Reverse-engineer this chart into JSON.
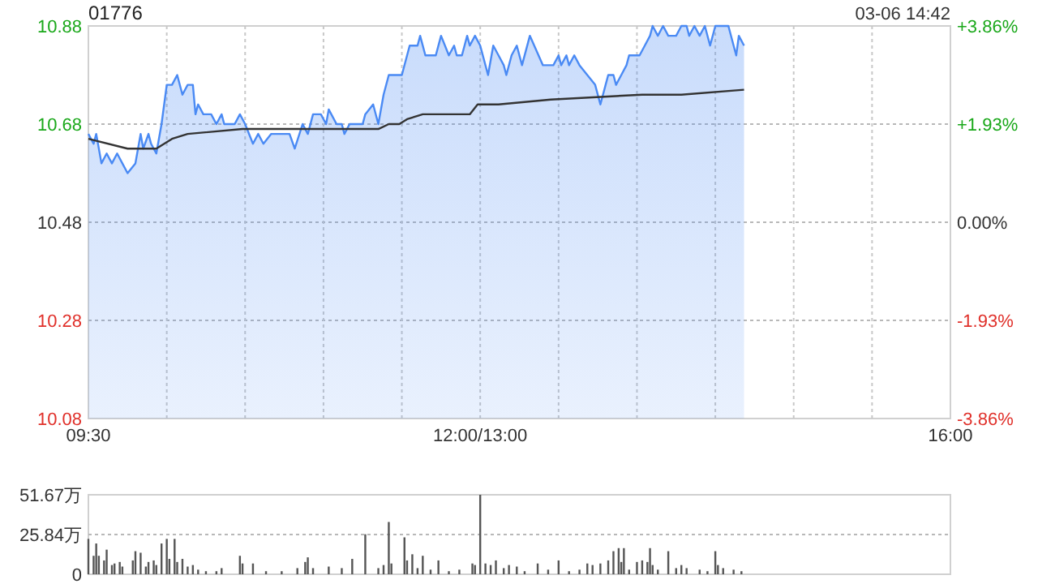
{
  "chart_data": [
    {
      "type": "line",
      "title": "01776",
      "annotations": [
        "03-06 14:42"
      ],
      "categories": [
        "09:30",
        null,
        null,
        null,
        null,
        null,
        null,
        null,
        null,
        null,
        null,
        null,
        null,
        null,
        null,
        null,
        null,
        null,
        null,
        null,
        null,
        null,
        null,
        null,
        null,
        null,
        null,
        null,
        null,
        null,
        null,
        null,
        null,
        null,
        null,
        null,
        null,
        null,
        null,
        null,
        null,
        null,
        null,
        null,
        null,
        null,
        null,
        null,
        null,
        null,
        null,
        null,
        null,
        null,
        null,
        null,
        null,
        null,
        null,
        null,
        null,
        null,
        null,
        null,
        null,
        null,
        null,
        null,
        null,
        null,
        null,
        null,
        null,
        null,
        null,
        null,
        null,
        null,
        null,
        null,
        null,
        null,
        null,
        null,
        null,
        null,
        null,
        null,
        null,
        null,
        null,
        null,
        null,
        null,
        null,
        null,
        null,
        null,
        null,
        null,
        null,
        null,
        null,
        null,
        null,
        null,
        null,
        null,
        null,
        null,
        null,
        null,
        null,
        null,
        null,
        null,
        null,
        null,
        null,
        null,
        null,
        null,
        null,
        null,
        null,
        null,
        null,
        null,
        null,
        null,
        null,
        null,
        null,
        null,
        null,
        null,
        null,
        null,
        null,
        null,
        null,
        null,
        null,
        null,
        null,
        null,
        null,
        null,
        null,
        null,
        "12:00/13:00",
        null,
        null,
        null,
        null,
        null,
        null,
        null,
        null,
        null,
        null,
        null,
        null,
        null,
        null,
        null,
        null,
        null,
        null,
        null,
        null,
        null,
        null,
        null,
        null,
        null,
        null,
        null,
        null,
        null,
        null,
        null,
        null,
        null,
        null,
        null,
        null,
        null,
        null,
        null,
        null,
        null,
        null,
        null,
        null,
        null,
        null,
        null,
        null,
        null,
        null,
        null,
        null,
        null,
        null,
        null,
        null,
        null,
        null,
        null,
        null,
        null,
        null,
        null,
        null,
        null,
        null,
        null,
        null,
        null,
        null,
        null,
        null,
        null,
        null,
        null,
        null,
        null,
        null,
        null,
        null,
        null,
        null,
        null,
        null,
        null,
        null,
        null,
        null,
        null,
        null,
        null,
        null,
        null,
        null,
        null,
        null,
        null,
        null,
        null,
        null,
        null,
        null,
        null,
        null,
        null,
        null,
        null,
        null,
        null,
        null,
        null,
        null,
        null,
        null,
        null,
        null,
        null,
        null,
        null,
        null,
        null,
        null,
        null,
        null,
        null,
        null,
        null,
        null,
        null,
        null,
        null,
        null,
        null,
        null,
        null,
        null,
        null,
        null,
        null,
        null,
        null,
        null,
        null,
        null,
        null,
        null,
        null,
        null,
        null,
        null,
        null,
        null,
        null,
        null,
        null,
        null,
        null,
        null,
        null,
        null,
        null,
        null,
        null,
        null,
        null,
        null,
        null,
        null,
        null,
        null,
        null,
        null,
        null,
        null,
        null,
        null,
        null,
        null,
        null,
        "16:00"
      ],
      "ylim": [
        10.08,
        10.88
      ],
      "yticks": [
        10.08,
        10.28,
        10.48,
        10.68,
        10.88
      ],
      "y2lim": [
        -3.86,
        3.86
      ],
      "y2ticks": [
        {
          "value": -3.86,
          "label": "-3.86%"
        },
        {
          "value": -1.93,
          "label": "-1.93%"
        },
        {
          "value": 0,
          "label": "0.00%"
        },
        {
          "value": 1.93,
          "label": "+1.93%"
        },
        {
          "value": 3.86,
          "label": "+3.86%"
        }
      ],
      "grid": true,
      "series": [
        {
          "type": "area",
          "color": "#4a8af4",
          "values": [
            10.66,
            null,
            10.64,
            10.66,
            null,
            10.6,
            null,
            10.62,
            null,
            10.6,
            null,
            10.62,
            null,
            10.6,
            null,
            10.58,
            null,
            null,
            10.6,
            null,
            10.66,
            10.63,
            null,
            10.66,
            10.64,
            null,
            10.62,
            null,
            10.68,
            null,
            10.76,
            null,
            10.76,
            null,
            10.78,
            null,
            10.74,
            null,
            10.76,
            null,
            10.76,
            10.7,
            10.72,
            null,
            10.7,
            null,
            null,
            10.7,
            null,
            10.68,
            null,
            10.7,
            10.68,
            null,
            null,
            null,
            10.68,
            null,
            10.7,
            null,
            10.68,
            null,
            null,
            10.64,
            null,
            10.66,
            null,
            10.64,
            null,
            null,
            10.66,
            null,
            null,
            null,
            null,
            null,
            null,
            10.66,
            null,
            10.63,
            null,
            null,
            10.68,
            null,
            10.66,
            null,
            10.7,
            null,
            null,
            10.7,
            null,
            10.68,
            10.71,
            null,
            null,
            10.68,
            null,
            10.68,
            10.66,
            null,
            10.68,
            null,
            null,
            null,
            null,
            10.68,
            10.7,
            null,
            null,
            10.72,
            null,
            10.68,
            null,
            10.74,
            null,
            10.78,
            null,
            null,
            null,
            null,
            10.78,
            null,
            null,
            10.84,
            null,
            null,
            10.84,
            10.86,
            null,
            10.82,
            null,
            null,
            null,
            10.82,
            null,
            10.86,
            null,
            null,
            10.82,
            null,
            10.84,
            10.82,
            null,
            10.82,
            null,
            10.86,
            10.84,
            null,
            10.86,
            null,
            10.84,
            null,
            null,
            10.78,
            null,
            10.84,
            null,
            10.82,
            null,
            10.8,
            10.78,
            null,
            10.82,
            null,
            10.84,
            null,
            10.8,
            null,
            null,
            10.86,
            null,
            null,
            null,
            null,
            10.8,
            null,
            null,
            null,
            10.8,
            null,
            10.82,
            10.8,
            null,
            10.82,
            10.8,
            null,
            10.82,
            null,
            10.8,
            null,
            null,
            10.78,
            null,
            null,
            10.76,
            null,
            10.72,
            null,
            10.76,
            10.78,
            null,
            10.78,
            10.76,
            null,
            10.78,
            null,
            10.8,
            10.82,
            null,
            null,
            null,
            10.82,
            null,
            10.84,
            null,
            10.86,
            10.88,
            null,
            10.86,
            null,
            10.88,
            null,
            10.86,
            null,
            null,
            10.86,
            null,
            10.88,
            null,
            10.88,
            10.86,
            null,
            10.88,
            null,
            10.86,
            null,
            10.88,
            null,
            10.84,
            null,
            10.88,
            null,
            null,
            null,
            null,
            10.88,
            null,
            10.84,
            10.82,
            10.86,
            null,
            10.84,
            null,
            null,
            null,
            null,
            null,
            null,
            null,
            null,
            null,
            null,
            null,
            null,
            null,
            null,
            null,
            null,
            null,
            null,
            null,
            null,
            null,
            null,
            null,
            null,
            null,
            null,
            null,
            null,
            null,
            null,
            null,
            null,
            null,
            null,
            null,
            null,
            null,
            null,
            null,
            null,
            null,
            null,
            null,
            null,
            null,
            null,
            null,
            null,
            null,
            null,
            null,
            null,
            null,
            null,
            null,
            null,
            null,
            null,
            null,
            null,
            null,
            null,
            null,
            null,
            null,
            null,
            null,
            null,
            null,
            null,
            null,
            null,
            null,
            null,
            null,
            null,
            null,
            null,
            null
          ]
        },
        {
          "color": "#333333",
          "values": [
            10.65,
            null,
            null,
            null,
            null,
            null,
            null,
            null,
            null,
            null,
            null,
            null,
            null,
            null,
            null,
            10.63,
            null,
            null,
            null,
            null,
            null,
            null,
            null,
            null,
            null,
            null,
            10.63,
            null,
            null,
            null,
            null,
            null,
            10.65,
            null,
            null,
            null,
            null,
            null,
            10.66,
            null,
            null,
            null,
            null,
            null,
            null,
            null,
            null,
            null,
            null,
            null,
            null,
            null,
            null,
            null,
            null,
            null,
            null,
            null,
            null,
            10.67,
            null,
            null,
            null,
            null,
            null,
            null,
            null,
            null,
            null,
            null,
            null,
            null,
            null,
            null,
            null,
            null,
            null,
            null,
            null,
            null,
            null,
            null,
            null,
            null,
            null,
            null,
            null,
            null,
            null,
            null,
            10.67,
            null,
            null,
            null,
            null,
            null,
            null,
            null,
            null,
            null,
            null,
            null,
            null,
            null,
            null,
            null,
            null,
            null,
            null,
            null,
            null,
            10.67,
            null,
            null,
            null,
            10.68,
            null,
            null,
            null,
            10.68,
            null,
            null,
            10.69,
            null,
            null,
            null,
            null,
            null,
            10.7,
            null,
            null,
            null,
            null,
            null,
            null,
            null,
            null,
            null,
            null,
            null,
            null,
            null,
            null,
            null,
            null,
            null,
            10.7,
            null,
            null,
            10.72,
            null,
            null,
            null,
            null,
            null,
            null,
            null,
            10.72,
            null,
            null,
            null,
            null,
            null,
            null,
            null,
            null,
            null,
            null,
            null,
            null,
            null,
            null,
            null,
            null,
            null,
            null,
            null,
            10.73,
            null,
            null,
            null,
            null,
            null,
            null,
            null,
            null,
            null,
            null,
            null,
            null,
            null,
            null,
            null,
            null,
            null,
            null,
            null,
            null,
            null,
            null,
            null,
            null,
            null,
            null,
            null,
            null,
            null,
            null,
            null,
            null,
            null,
            null,
            10.74,
            null,
            null,
            null,
            null,
            null,
            null,
            null,
            null,
            null,
            null,
            null,
            null,
            null,
            null,
            10.74,
            null,
            null,
            null,
            null,
            null,
            null,
            null,
            null,
            null,
            null,
            null,
            null,
            null,
            null,
            null,
            null,
            null,
            null,
            null,
            null,
            null,
            null,
            null,
            10.75,
            null,
            null,
            null,
            null,
            null,
            null,
            null,
            null,
            null,
            null,
            null,
            null,
            null,
            null,
            null,
            null,
            null,
            null,
            null,
            null,
            null,
            null,
            null,
            null,
            null,
            null,
            null,
            null,
            null,
            null,
            null,
            null,
            null,
            null,
            null,
            null,
            null,
            null,
            null,
            null,
            null,
            null,
            null,
            null,
            null,
            null,
            null,
            null,
            null,
            null,
            null,
            null,
            null,
            null,
            null,
            null,
            null,
            null,
            null,
            null,
            null,
            null,
            null,
            null,
            null,
            null,
            null,
            null,
            null,
            null,
            null,
            null,
            null,
            null,
            null,
            null,
            null,
            null,
            null
          ]
        }
      ]
    },
    {
      "type": "bar",
      "categories": [
        null,
        null,
        null,
        null,
        null,
        null,
        null,
        null,
        null,
        null,
        null,
        null,
        null,
        null,
        null,
        null,
        null,
        null,
        null,
        null,
        null,
        null,
        null,
        null,
        null,
        null,
        null,
        null,
        null,
        null,
        null,
        null,
        null,
        null,
        null,
        null,
        null,
        null,
        null,
        null,
        null,
        null,
        null,
        null,
        null,
        null,
        null,
        null,
        null,
        null,
        null,
        null,
        null,
        null,
        null,
        null,
        null,
        null,
        null,
        null,
        null,
        null,
        null,
        null,
        null,
        null,
        null,
        null,
        null,
        null,
        null,
        null,
        null,
        null,
        null,
        null,
        null,
        null,
        null,
        null,
        null,
        null,
        null,
        null,
        null,
        null,
        null,
        null,
        null,
        null,
        null,
        null,
        null,
        null,
        null,
        null,
        null,
        null,
        null,
        null,
        null,
        null,
        null,
        null,
        null,
        null,
        null,
        null,
        null,
        null,
        null,
        null,
        null,
        null,
        null,
        null,
        null,
        null,
        null,
        null,
        null,
        null,
        null,
        null,
        null,
        null,
        null,
        null,
        null,
        null,
        null,
        null,
        null,
        null,
        null,
        null,
        null,
        null,
        null,
        null,
        null,
        null,
        null,
        null,
        null,
        null,
        null,
        null,
        null,
        null,
        null,
        null,
        null,
        null,
        null,
        null,
        null,
        null,
        null,
        null,
        null,
        null,
        null,
        null,
        null,
        null,
        null,
        null,
        null,
        null,
        null,
        null,
        null,
        null,
        null,
        null,
        null,
        null,
        null,
        null,
        null,
        null,
        null,
        null,
        null,
        null,
        null,
        null,
        null,
        null,
        null,
        null,
        null,
        null,
        null,
        null,
        null,
        null,
        null,
        null,
        null,
        null,
        null,
        null,
        null,
        null,
        null,
        null,
        null,
        null,
        null,
        null,
        null,
        null,
        null,
        null,
        null,
        null,
        null,
        null,
        null,
        null,
        null,
        null,
        null,
        null,
        null,
        null,
        null,
        null,
        null,
        null,
        null,
        null,
        null,
        null,
        null,
        null,
        null,
        null,
        null,
        null,
        null,
        null,
        null,
        null,
        null,
        null,
        null,
        null,
        null,
        null,
        null,
        null,
        null,
        null,
        null,
        null,
        null,
        null,
        null,
        null,
        null,
        null,
        null,
        null,
        null,
        null,
        null,
        null,
        null,
        null,
        null,
        null,
        null,
        null,
        null,
        null,
        null,
        null,
        null,
        null,
        null,
        null,
        null,
        null,
        null,
        null,
        null,
        null,
        null,
        null,
        null,
        null,
        null,
        null,
        null,
        null,
        null,
        null,
        null,
        null,
        null,
        null,
        null,
        null,
        null,
        null,
        null,
        null,
        null,
        null,
        null,
        null,
        null,
        null,
        null,
        null,
        null,
        null,
        null,
        null,
        null,
        null,
        null,
        null,
        null,
        null,
        null,
        null,
        null
      ],
      "ylim": [
        0,
        51.67
      ],
      "yticks": [
        0,
        {
          "value": 25.84,
          "label": "25.84万"
        },
        {
          "value": 51.67,
          "label": "51.67万"
        }
      ],
      "grid": "y",
      "tick_labels": "y",
      "series": [
        {
          "color": "#555555",
          "values": [
            23,
            null,
            12,
            20,
            12,
            null,
            9,
            16,
            null,
            6,
            7,
            null,
            8,
            5,
            null,
            null,
            null,
            9,
            15,
            null,
            14,
            null,
            5,
            8,
            null,
            9,
            6,
            null,
            20,
            null,
            23,
            10,
            null,
            23,
            8,
            null,
            10,
            null,
            5,
            null,
            6,
            null,
            3,
            null,
            null,
            2,
            null,
            null,
            null,
            2,
            null,
            4,
            null,
            null,
            null,
            null,
            null,
            null,
            12,
            7,
            null,
            null,
            null,
            7,
            null,
            null,
            null,
            null,
            2,
            null,
            null,
            null,
            null,
            null,
            2,
            null,
            null,
            null,
            null,
            null,
            4,
            null,
            null,
            8,
            11,
            null,
            4,
            null,
            null,
            null,
            null,
            null,
            5,
            null,
            null,
            null,
            null,
            4,
            null,
            null,
            null,
            10,
            null,
            null,
            null,
            null,
            26,
            null,
            null,
            null,
            null,
            4,
            null,
            6,
            null,
            34,
            7,
            null,
            null,
            null,
            null,
            24,
            9,
            null,
            13,
            null,
            4,
            null,
            12,
            null,
            null,
            3,
            null,
            null,
            9,
            null,
            null,
            null,
            2,
            null,
            null,
            null,
            3,
            null,
            null,
            null,
            null,
            7,
            6,
            null,
            51.67,
            null,
            7,
            null,
            6,
            null,
            9,
            null,
            null,
            4,
            null,
            6,
            null,
            null,
            5,
            null,
            null,
            2,
            null,
            null,
            null,
            null,
            7,
            null,
            null,
            null,
            3,
            null,
            null,
            null,
            9,
            null,
            null,
            null,
            2,
            null,
            null,
            null,
            3,
            null,
            null,
            7,
            null,
            6,
            null,
            null,
            7,
            null,
            null,
            9,
            null,
            15,
            null,
            17,
            8,
            17,
            null,
            3,
            null,
            null,
            8,
            null,
            9,
            null,
            8,
            17,
            6,
            null,
            3,
            null,
            null,
            null,
            15,
            null,
            null,
            4,
            null,
            6,
            null,
            4,
            null,
            null,
            null,
            null,
            3,
            null,
            null,
            2,
            null,
            null,
            15,
            6,
            null,
            4,
            null,
            null,
            null,
            3,
            null,
            null,
            2,
            null,
            null,
            null,
            null,
            null,
            null,
            null,
            null,
            null,
            null,
            null,
            null,
            null,
            null,
            null,
            null,
            null,
            null,
            null,
            null,
            null,
            null,
            null,
            null,
            null,
            null,
            null,
            null,
            null,
            null,
            null,
            null,
            null,
            null,
            null,
            null,
            null,
            null,
            null,
            null,
            null,
            null,
            null,
            null,
            null,
            null,
            null,
            null,
            null,
            null,
            null,
            null,
            null,
            null,
            null,
            null,
            null,
            null,
            null,
            null,
            null,
            null,
            null,
            null,
            null,
            null,
            null,
            null,
            null,
            null,
            null,
            null,
            null,
            null,
            null,
            null,
            null,
            null,
            null,
            null
          ]
        }
      ]
    }
  ]
}
